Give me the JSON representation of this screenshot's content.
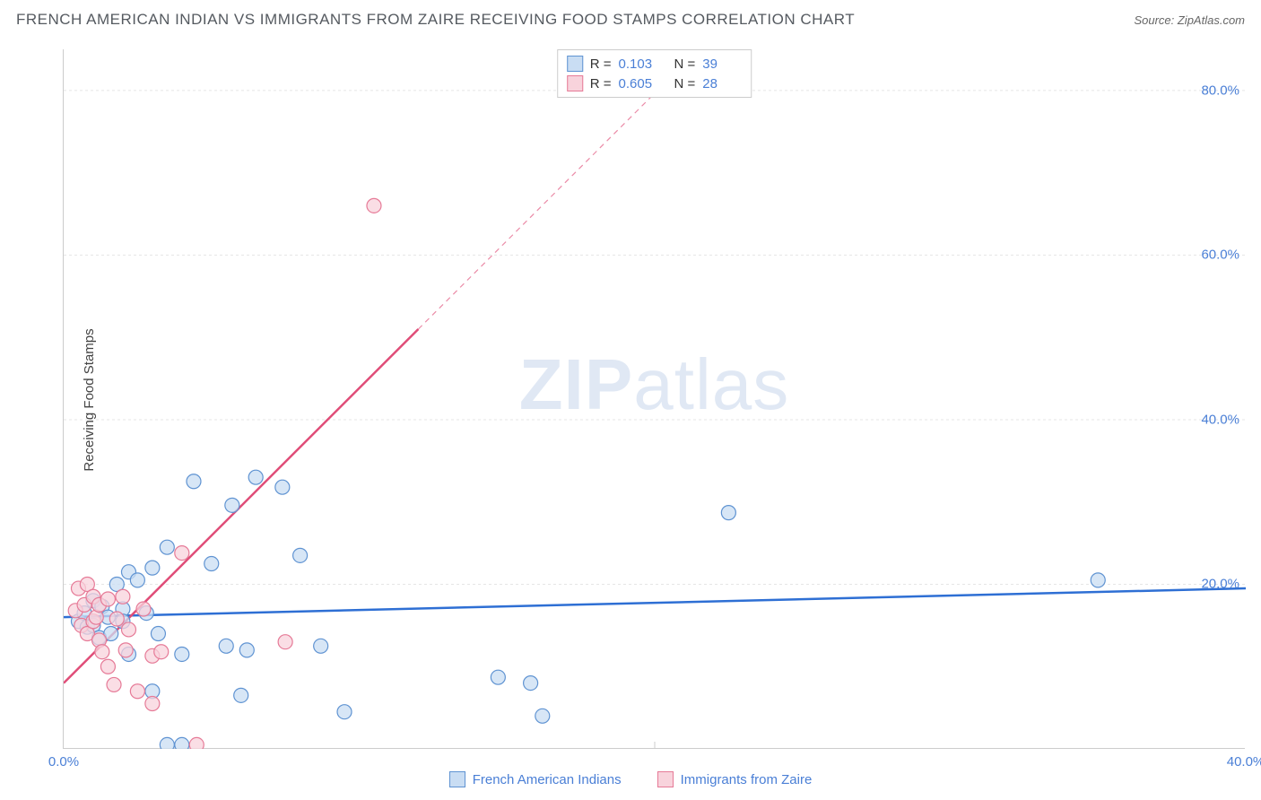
{
  "title": "FRENCH AMERICAN INDIAN VS IMMIGRANTS FROM ZAIRE RECEIVING FOOD STAMPS CORRELATION CHART",
  "source": "Source: ZipAtlas.com",
  "watermark_bold": "ZIP",
  "watermark_rest": "atlas",
  "yaxis_label": "Receiving Food Stamps",
  "chart": {
    "type": "scatter-with-regression",
    "background_color": "#ffffff",
    "grid_color": "#e5e5e5",
    "axis_line_color": "#cccccc",
    "tick_label_color": "#4a7fd6",
    "tick_fontsize": 15,
    "xlim": [
      0,
      40
    ],
    "ylim": [
      0,
      85
    ],
    "xticks": [
      0.0,
      40.0
    ],
    "xtick_labels": [
      "0.0%",
      "40.0%"
    ],
    "xtick_minor": [
      20
    ],
    "yticks": [
      20.0,
      40.0,
      60.0,
      80.0
    ],
    "ytick_labels": [
      "20.0%",
      "40.0%",
      "60.0%",
      "80.0%"
    ],
    "marker_radius": 8,
    "marker_stroke_width": 1.2,
    "trendline_width": 2.5,
    "series": [
      {
        "key": "blue",
        "label": "French American Indians",
        "fill": "#c9ddf3",
        "stroke": "#5f93d2",
        "trend_color": "#2e6fd4",
        "R": "0.103",
        "N": "39",
        "trend_from": [
          0,
          16.0
        ],
        "trend_to": [
          40,
          19.5
        ],
        "points": [
          [
            0.5,
            15.5
          ],
          [
            0.7,
            16.5
          ],
          [
            0.8,
            14.8
          ],
          [
            1.0,
            18.0
          ],
          [
            1.0,
            15.0
          ],
          [
            1.2,
            13.5
          ],
          [
            1.3,
            17.3
          ],
          [
            1.5,
            16.0
          ],
          [
            1.6,
            14.0
          ],
          [
            1.8,
            20.0
          ],
          [
            2.0,
            17.0
          ],
          [
            2.0,
            15.5
          ],
          [
            2.2,
            21.5
          ],
          [
            2.2,
            11.5
          ],
          [
            2.5,
            20.5
          ],
          [
            2.8,
            16.5
          ],
          [
            3.0,
            22.0
          ],
          [
            3.0,
            7.0
          ],
          [
            3.2,
            14.0
          ],
          [
            3.5,
            0.5
          ],
          [
            3.5,
            24.5
          ],
          [
            4.0,
            11.5
          ],
          [
            4.0,
            0.5
          ],
          [
            4.4,
            32.5
          ],
          [
            5.0,
            22.5
          ],
          [
            5.5,
            12.5
          ],
          [
            5.7,
            29.6
          ],
          [
            6.0,
            6.5
          ],
          [
            6.2,
            12.0
          ],
          [
            6.5,
            33.0
          ],
          [
            7.4,
            31.8
          ],
          [
            8.0,
            23.5
          ],
          [
            8.7,
            12.5
          ],
          [
            9.5,
            4.5
          ],
          [
            14.7,
            8.7
          ],
          [
            15.8,
            8.0
          ],
          [
            16.2,
            4.0
          ],
          [
            22.5,
            28.7
          ],
          [
            35.0,
            20.5
          ]
        ]
      },
      {
        "key": "pink",
        "label": "Immigrants from Zaire",
        "fill": "#f8d3dc",
        "stroke": "#e67a97",
        "trend_color": "#e04d78",
        "R": "0.605",
        "N": "28",
        "trend_from": [
          0,
          8.0
        ],
        "trend_to_solid": [
          12,
          51.0
        ],
        "trend_to_dash": [
          24,
          94.0
        ],
        "points": [
          [
            0.4,
            16.8
          ],
          [
            0.5,
            19.5
          ],
          [
            0.6,
            15.0
          ],
          [
            0.7,
            17.5
          ],
          [
            0.8,
            14.0
          ],
          [
            0.8,
            20.0
          ],
          [
            1.0,
            15.5
          ],
          [
            1.0,
            18.5
          ],
          [
            1.1,
            16.0
          ],
          [
            1.2,
            13.2
          ],
          [
            1.2,
            17.5
          ],
          [
            1.3,
            11.8
          ],
          [
            1.5,
            18.2
          ],
          [
            1.5,
            10.0
          ],
          [
            1.7,
            7.8
          ],
          [
            1.8,
            15.8
          ],
          [
            2.0,
            18.5
          ],
          [
            2.1,
            12.0
          ],
          [
            2.2,
            14.5
          ],
          [
            2.5,
            7.0
          ],
          [
            2.7,
            17.0
          ],
          [
            3.0,
            11.3
          ],
          [
            3.0,
            5.5
          ],
          [
            3.3,
            11.8
          ],
          [
            4.0,
            23.8
          ],
          [
            4.5,
            0.5
          ],
          [
            7.5,
            13.0
          ],
          [
            10.5,
            66.0
          ]
        ]
      }
    ]
  },
  "legend_swatch_size": 18
}
